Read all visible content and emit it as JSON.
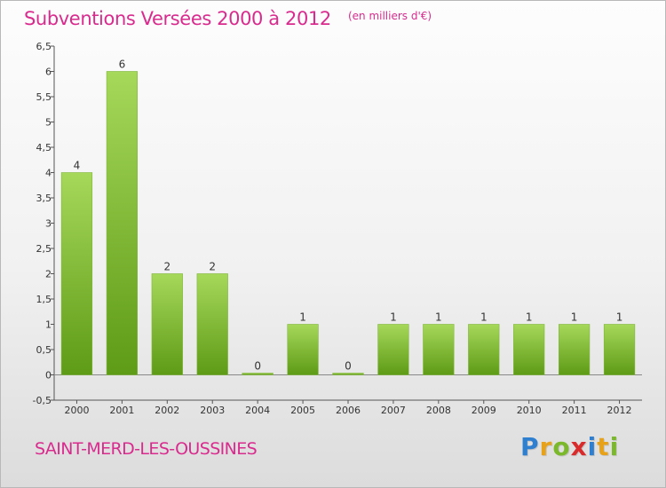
{
  "header": {
    "title": "Subventions Versées 2000 à 2012",
    "unit": "(en milliers d'€)"
  },
  "footer": {
    "commune": "SAINT-MERD-LES-OUSSINES",
    "brand": "Proxiti",
    "brand_letters": [
      {
        "char": "P",
        "color": "#2f7fd0"
      },
      {
        "char": "r",
        "color": "#e8a21a"
      },
      {
        "char": "o",
        "color": "#7bb82c"
      },
      {
        "char": "x",
        "color": "#d92b2b"
      },
      {
        "char": "i",
        "color": "#2f7fd0"
      },
      {
        "char": "t",
        "color": "#e8a21a"
      },
      {
        "char": "i",
        "color": "#7bb82c"
      }
    ]
  },
  "chart_data": {
    "type": "bar",
    "title": "Subventions Versées 2000 à 2012",
    "ylabel": "(en milliers d'€)",
    "categories": [
      "2000",
      "2001",
      "2002",
      "2003",
      "2004",
      "2005",
      "2006",
      "2007",
      "2008",
      "2009",
      "2010",
      "2011",
      "2012"
    ],
    "values": [
      4,
      6,
      2,
      2,
      0,
      1,
      0,
      1,
      1,
      1,
      1,
      1,
      1
    ],
    "data_labels": [
      "4",
      "6",
      "2",
      "2",
      "0",
      "1",
      "0",
      "1",
      "1",
      "1",
      "1",
      "1",
      "1"
    ],
    "ylim": [
      -0.5,
      6.5
    ],
    "yticks": [
      -0.5,
      0,
      0.5,
      1,
      1.5,
      2,
      2.5,
      3,
      3.5,
      4,
      4.5,
      5,
      5.5,
      6,
      6.5
    ],
    "ytick_labels": [
      "-0,5",
      "0",
      "0,5",
      "1",
      "1,5",
      "2",
      "2,5",
      "3",
      "3,5",
      "4",
      "4,5",
      "5",
      "5,5",
      "6",
      "6,5"
    ],
    "grid": false,
    "colors": {
      "bar_light": "#a6d85a",
      "bar_dark": "#5e9b16",
      "axis": "#555555"
    }
  }
}
